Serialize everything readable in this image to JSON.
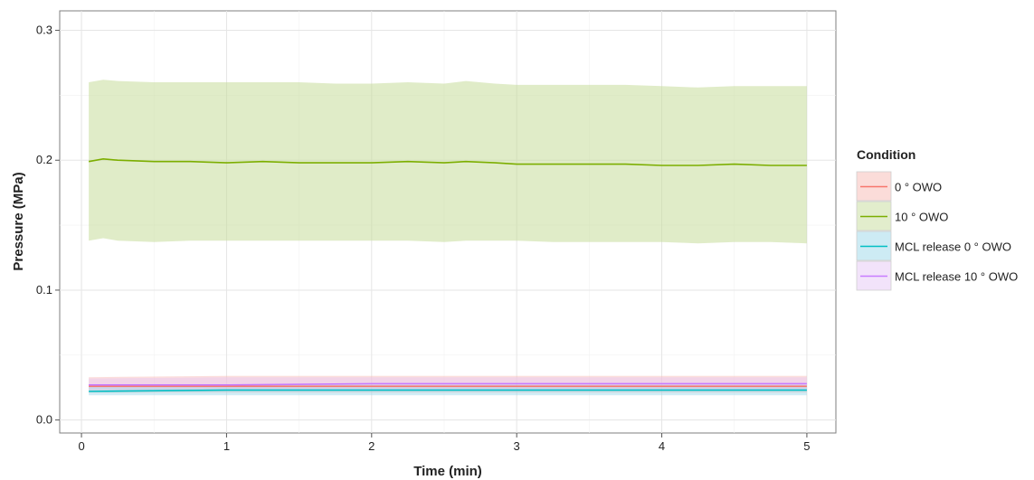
{
  "chart_data": {
    "type": "line",
    "xlabel": "Time (min)",
    "ylabel": "Pressure (MPa)",
    "xlim": [
      -0.15,
      5.2
    ],
    "ylim": [
      -0.01,
      0.315
    ],
    "x_ticks": [
      0,
      1,
      2,
      3,
      4,
      5
    ],
    "x_tick_labels": [
      "0",
      "1",
      "2",
      "3",
      "4",
      "5"
    ],
    "y_ticks": [
      0.0,
      0.1,
      0.2,
      0.3
    ],
    "y_tick_labels": [
      "0.0",
      "0.1",
      "0.2",
      "0.3"
    ],
    "grid": true,
    "legend": {
      "title": "Condition",
      "placement": "right"
    },
    "series": [
      {
        "name": "0 ° OWO",
        "color": "#f8766d",
        "band_color": "#f8b9b4",
        "x": [
          0.05,
          1,
          2,
          3,
          4,
          5
        ],
        "y": [
          0.026,
          0.026,
          0.026,
          0.026,
          0.026,
          0.026
        ],
        "lower": [
          0.021,
          0.021,
          0.021,
          0.021,
          0.021,
          0.021
        ],
        "upper": [
          0.033,
          0.034,
          0.034,
          0.034,
          0.034,
          0.034
        ]
      },
      {
        "name": "10 ° OWO",
        "color": "#7cae00",
        "band_color": "#c6dc9a",
        "x": [
          0.05,
          0.15,
          0.25,
          0.5,
          0.75,
          1.0,
          1.25,
          1.5,
          1.75,
          2.0,
          2.25,
          2.5,
          2.65,
          2.85,
          3.0,
          3.25,
          3.5,
          3.75,
          4.0,
          4.25,
          4.5,
          4.75,
          5.0
        ],
        "y": [
          0.199,
          0.201,
          0.2,
          0.199,
          0.199,
          0.198,
          0.199,
          0.198,
          0.198,
          0.198,
          0.199,
          0.198,
          0.199,
          0.198,
          0.197,
          0.197,
          0.197,
          0.197,
          0.196,
          0.196,
          0.197,
          0.196,
          0.196
        ],
        "lower": [
          0.138,
          0.14,
          0.138,
          0.137,
          0.138,
          0.138,
          0.138,
          0.138,
          0.138,
          0.138,
          0.138,
          0.137,
          0.138,
          0.138,
          0.138,
          0.137,
          0.137,
          0.137,
          0.137,
          0.136,
          0.137,
          0.137,
          0.136
        ],
        "upper": [
          0.26,
          0.262,
          0.261,
          0.26,
          0.26,
          0.26,
          0.26,
          0.26,
          0.259,
          0.259,
          0.26,
          0.259,
          0.261,
          0.259,
          0.258,
          0.258,
          0.258,
          0.258,
          0.257,
          0.256,
          0.257,
          0.257,
          0.257
        ]
      },
      {
        "name": "MCL release 0 ° OWO",
        "color": "#00bfc4",
        "band_color": "#9bd8ea",
        "x": [
          0.05,
          1,
          2,
          3,
          4,
          5
        ],
        "y": [
          0.022,
          0.023,
          0.023,
          0.023,
          0.023,
          0.023
        ],
        "lower": [
          0.019,
          0.019,
          0.019,
          0.019,
          0.019,
          0.019
        ],
        "upper": [
          0.026,
          0.027,
          0.027,
          0.027,
          0.027,
          0.027
        ]
      },
      {
        "name": "MCL release 10 ° OWO",
        "color": "#c77cff",
        "band_color": "#e6c8f5",
        "x": [
          0.05,
          1,
          2,
          3,
          4,
          5
        ],
        "y": [
          0.027,
          0.027,
          0.028,
          0.028,
          0.028,
          0.028
        ],
        "lower": [
          0.023,
          0.023,
          0.023,
          0.023,
          0.023,
          0.023
        ],
        "upper": [
          0.032,
          0.033,
          0.033,
          0.033,
          0.033,
          0.033
        ]
      }
    ]
  }
}
